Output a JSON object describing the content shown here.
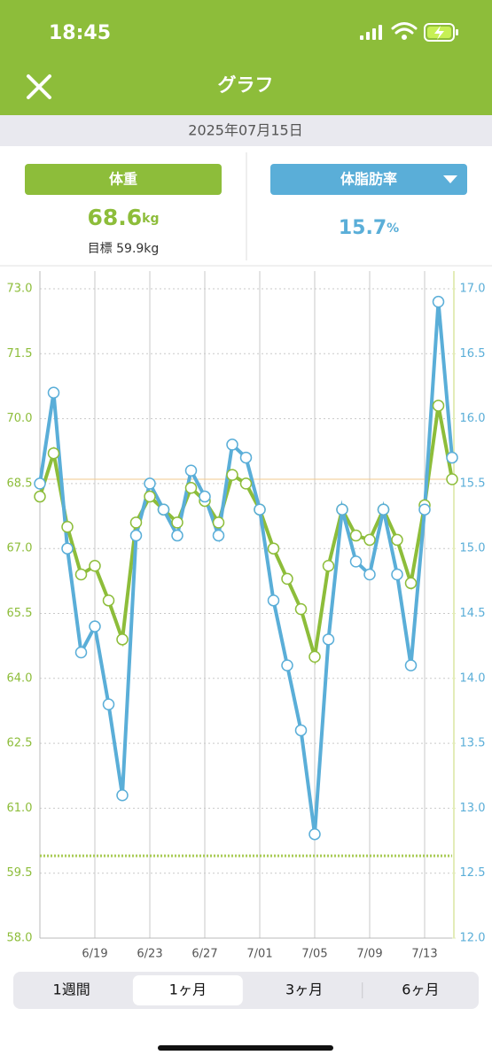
{
  "status_bar": {
    "time": "18:45"
  },
  "header": {
    "title": "グラフ"
  },
  "date": "2025年07月15日",
  "summary": {
    "weight": {
      "value": "68.6",
      "unit": "kg",
      "goal": "目標 59.9kg"
    },
    "body_fat": {
      "value": "15.7",
      "unit": "%"
    }
  },
  "chart_data": {
    "type": "line",
    "categories": [
      null,
      null,
      null,
      null,
      "6/19",
      null,
      null,
      null,
      "6/23",
      null,
      null,
      null,
      "6/27",
      null,
      null,
      null,
      "7/01",
      null,
      null,
      null,
      "7/05",
      null,
      null,
      null,
      "7/09",
      null,
      null,
      null,
      "7/13",
      null,
      null
    ],
    "series": [
      {
        "name": "体重",
        "color": "#8dbd3a",
        "values": [
          68.2,
          69.2,
          67.5,
          66.4,
          66.6,
          65.8,
          64.9,
          67.6,
          68.2,
          67.9,
          67.6,
          68.4,
          68.1,
          67.6,
          68.7,
          68.5,
          67.9,
          67.0,
          66.3,
          65.6,
          64.5,
          66.6,
          67.9,
          67.3,
          67.2,
          67.9,
          67.2,
          66.2,
          68.0,
          70.3,
          68.6
        ]
      },
      {
        "name": "体脂肪率",
        "color": "#5aaed8",
        "axis": "y2",
        "values": [
          15.5,
          16.2,
          15.0,
          14.2,
          14.4,
          13.8,
          13.1,
          15.1,
          15.5,
          15.3,
          15.1,
          15.6,
          15.4,
          15.1,
          15.8,
          15.7,
          15.3,
          14.6,
          14.1,
          13.6,
          12.8,
          14.3,
          15.3,
          14.9,
          14.8,
          15.3,
          14.8,
          14.1,
          15.3,
          16.9,
          15.7
        ]
      }
    ],
    "ylim": [
      58,
      73
    ],
    "yticks": [
      {
        "value": 58,
        "label": "58.0"
      },
      59.5,
      {
        "value": 61,
        "label": "61.0"
      },
      62.5,
      {
        "value": 64,
        "label": "64.0"
      },
      65.5,
      {
        "value": 67,
        "label": "67.0"
      },
      68.5,
      {
        "value": 70,
        "label": "70.0"
      },
      71.5,
      {
        "value": 73,
        "label": "73.0"
      }
    ],
    "y2lim": [
      12,
      17
    ],
    "y2ticks": [
      {
        "value": 12,
        "label": "12.0"
      },
      12.5,
      {
        "value": 13,
        "label": "13.0"
      },
      13.5,
      {
        "value": 14,
        "label": "14.0"
      },
      14.5,
      {
        "value": 15,
        "label": "15.0"
      },
      15.5,
      {
        "value": 16,
        "label": "16.0"
      },
      16.5,
      {
        "value": 17,
        "label": "17.0"
      }
    ],
    "grid": true,
    "reference_lines": [
      {
        "value": 68.6,
        "color": "#f2c88e",
        "style": "solid"
      },
      {
        "value": 59.9,
        "color": "#a9cb55",
        "style": "dotted"
      }
    ]
  },
  "tabs": [
    "1週間",
    "1ヶ月",
    "3ヶ月",
    "6ヶ月"
  ],
  "selected_tab": 1
}
